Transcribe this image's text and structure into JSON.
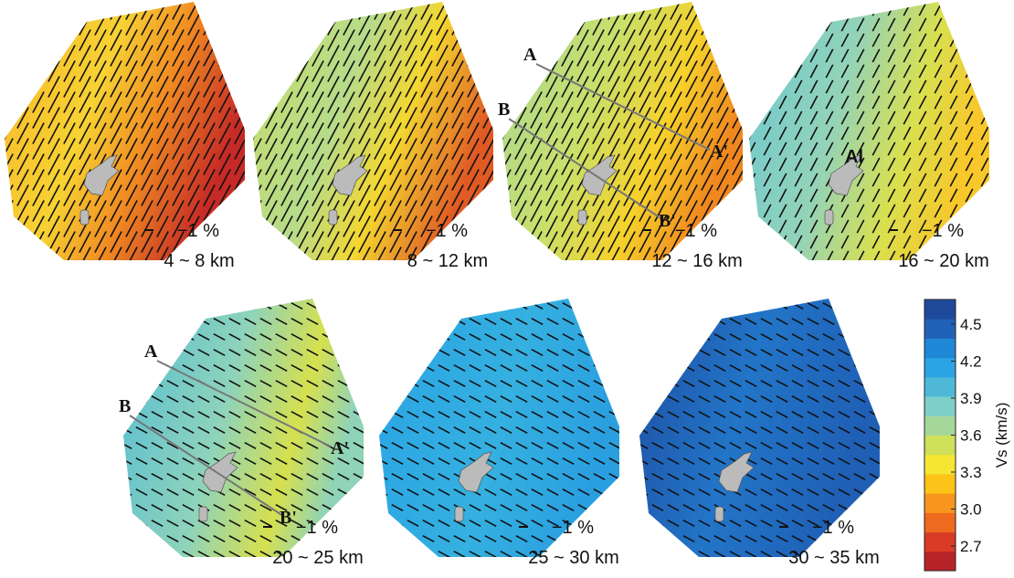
{
  "panels": [
    {
      "scale_label": "−1 %",
      "depth": "4 ~ 8 km"
    },
    {
      "scale_label": "−1 %",
      "depth": "8 ~ 12 km"
    },
    {
      "scale_label": "−1 %",
      "depth": "12 ~ 16 km"
    },
    {
      "scale_label": "−1 %",
      "depth": "16 ~ 20 km"
    },
    {
      "scale_label": "−1 %",
      "depth": "20 ~ 25 km"
    },
    {
      "scale_label": "−1 %",
      "depth": "25 ~ 30 km"
    },
    {
      "scale_label": "−1 %",
      "depth": "30 ~ 35 km"
    }
  ],
  "profile_labels": {
    "a": "A",
    "a_end": "A'",
    "b": "B",
    "b_end": "B'"
  },
  "annotation": "Al",
  "colorbar": {
    "label": "Vs (km/s)",
    "lim": [
      2.5,
      4.7
    ],
    "ticks": [
      2.7,
      {
        "value": 3,
        "label": "3.0"
      },
      3.3,
      3.6,
      3.9,
      4.2,
      4.5
    ],
    "colors": [
      "#b8232a",
      "#d93b26",
      "#ee6a1f",
      "#f7951d",
      "#fcc419",
      "#f5e634",
      "#cfe05a",
      "#a6d79a",
      "#7fcfc9",
      "#4fb8d8",
      "#2aa4e4",
      "#1f88d6",
      "#2062b8",
      "#1f4a9c"
    ]
  }
}
